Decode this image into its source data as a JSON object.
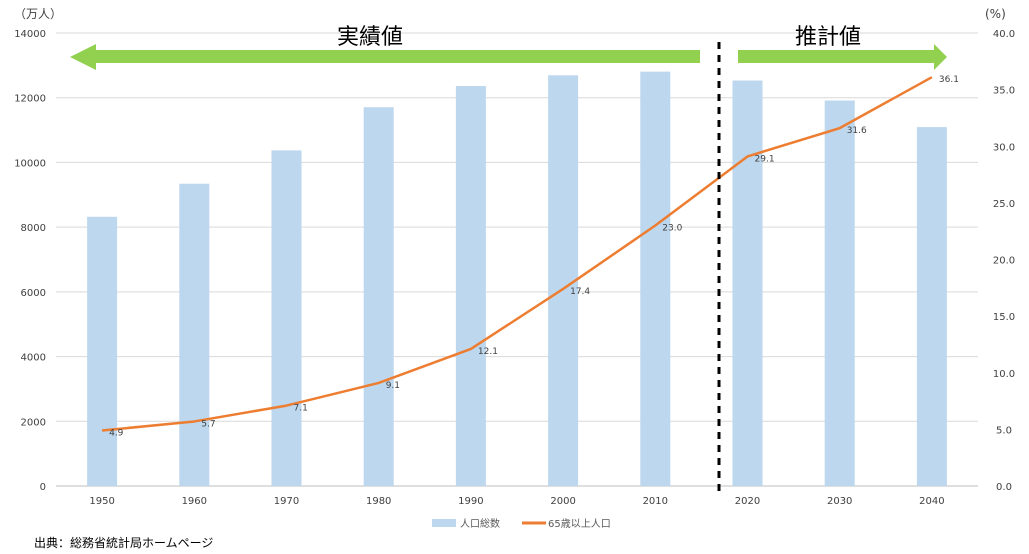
{
  "chart_data": {
    "type": "bar+line",
    "categories": [
      "1950",
      "1960",
      "1970",
      "1980",
      "1990",
      "2000",
      "2010",
      "2020",
      "2030",
      "2040"
    ],
    "series": [
      {
        "name": "人口総数",
        "type": "bar",
        "axis": "left",
        "color": "#BDD7EE",
        "values": [
          8320,
          9342,
          10372,
          11706,
          12361,
          12693,
          12806,
          12532,
          11913,
          11092
        ]
      },
      {
        "name": "65歳以上人口",
        "type": "line",
        "axis": "right",
        "color": "#ED7D31",
        "values": [
          4.9,
          5.7,
          7.1,
          9.1,
          12.1,
          17.4,
          23.0,
          29.1,
          31.6,
          36.1
        ],
        "labels": [
          "4.9",
          "5.7",
          "7.1",
          "9.1",
          "12.1",
          "17.4",
          "23.0",
          "29.1",
          "31.6",
          "36.1"
        ]
      }
    ],
    "y_left": {
      "unit": "（万人）",
      "min": 0,
      "max": 14000,
      "step": 2000,
      "ticks": [
        "0",
        "2000",
        "4000",
        "6000",
        "8000",
        "10000",
        "12000",
        "14000"
      ]
    },
    "y_right": {
      "unit": "(%)",
      "min": 0,
      "max": 40,
      "step": 5,
      "ticks": [
        "0.0",
        "5.0",
        "10.0",
        "15.0",
        "20.0",
        "25.0",
        "30.0",
        "35.0",
        "40.0"
      ]
    },
    "grid": true,
    "legend_position": "bottom",
    "phases": [
      {
        "label": "実績値",
        "color": "#92D050"
      },
      {
        "label": "推計値",
        "color": "#92D050"
      }
    ],
    "divider_style": "dashed"
  },
  "source_note": "出典：総務省統計局ホームページ"
}
